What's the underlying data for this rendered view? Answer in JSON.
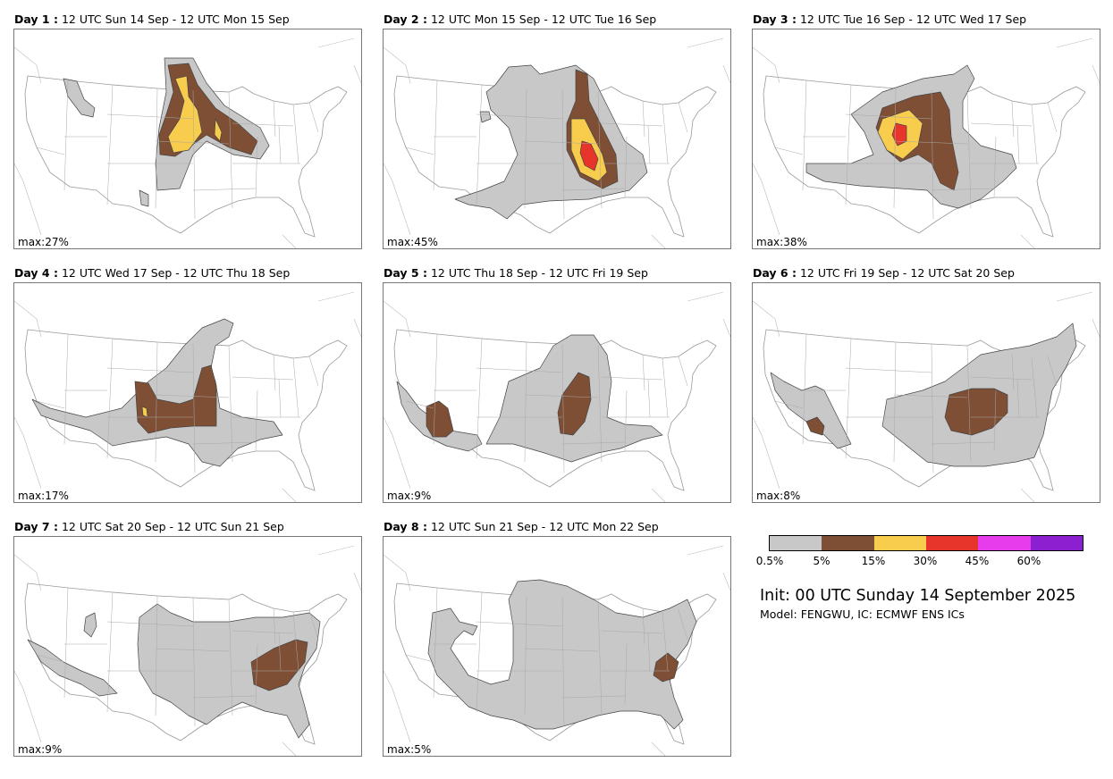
{
  "panels": [
    {
      "day": "Day 1 :",
      "period": "12 UTC Sun 14 Sep - 12 UTC Mon 15 Sep",
      "max": "max:27%",
      "level": 2,
      "max_probability_percent": 27
    },
    {
      "day": "Day 2 :",
      "period": "12 UTC Mon 15 Sep - 12 UTC Tue 16 Sep",
      "max": "max:45%",
      "level": 3,
      "max_probability_percent": 45
    },
    {
      "day": "Day 3 :",
      "period": "12 UTC Tue 16 Sep - 12 UTC Wed 17 Sep",
      "max": "max:38%",
      "level": 3,
      "max_probability_percent": 38
    },
    {
      "day": "Day 4 :",
      "period": "12 UTC Wed 17 Sep - 12 UTC Thu 18 Sep",
      "max": "max:17%",
      "level": 2,
      "max_probability_percent": 17
    },
    {
      "day": "Day 5 :",
      "period": "12 UTC Thu 18 Sep - 12 UTC Fri 19 Sep",
      "max": "max:9%",
      "level": 1,
      "max_probability_percent": 9
    },
    {
      "day": "Day 6 :",
      "period": "12 UTC Fri 19 Sep - 12 UTC Sat 20 Sep",
      "max": "max:8%",
      "level": 1,
      "max_probability_percent": 8
    },
    {
      "day": "Day 7 :",
      "period": "12 UTC Sat 20 Sep - 12 UTC Sun 21 Sep",
      "max": "max:9%",
      "level": 1,
      "max_probability_percent": 9
    },
    {
      "day": "Day 8 :",
      "period": "12 UTC Sun 21 Sep - 12 UTC Mon 22 Sep",
      "max": "max:5%",
      "level": 1,
      "max_probability_percent": 5
    }
  ],
  "legend": {
    "ticks": [
      "0.5%",
      "5%",
      "15%",
      "30%",
      "45%",
      "60%"
    ],
    "colors": [
      "#c8c8c8",
      "#7f4f35",
      "#f8cc4c",
      "#e8352b",
      "#e63cea",
      "#8c1fd0"
    ]
  },
  "init_text": "Init: 00 UTC Sunday 14 September 2025",
  "model_text": "Model: FENGWU, IC: ECMWF ENS ICs"
}
